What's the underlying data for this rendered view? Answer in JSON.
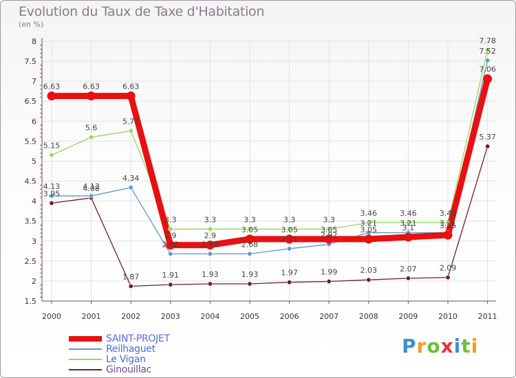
{
  "chart_data": {
    "type": "line",
    "title": "Evolution du Taux de Taxe d'Habitation",
    "subtitle": "(en %)",
    "x": [
      "2000",
      "2001",
      "2002",
      "2003",
      "2004",
      "2005",
      "2006",
      "2007",
      "2008",
      "2009",
      "2010",
      "2011"
    ],
    "ylim": [
      1.5,
      8
    ],
    "yticks": [
      "1.5",
      "2",
      "2.5",
      "3",
      "3.5",
      "4",
      "4.5",
      "5",
      "5.5",
      "6",
      "6.5",
      "7",
      "7.5",
      "8"
    ],
    "series": [
      {
        "name": "SAINT-PROJET",
        "color": "#e81010",
        "values": [
          6.63,
          6.63,
          6.63,
          2.9,
          2.9,
          3.05,
          3.05,
          3.05,
          3.05,
          3.1,
          3.15,
          7.06
        ],
        "labels": [
          "6.63",
          "6.63",
          "6.63",
          "2.9",
          "2.9",
          "3.05",
          "3.05",
          "3.05",
          "3.05",
          "3.1",
          "3.15",
          "7.06"
        ]
      },
      {
        "name": "Reilhaguet",
        "color": "#5b98cc",
        "values": [
          4.13,
          4.13,
          4.34,
          2.68,
          2.68,
          2.68,
          2.81,
          2.92,
          3.21,
          3.21,
          3.21,
          7.52
        ],
        "labels": [
          "4.13",
          "4.13",
          "4.34",
          "2.68",
          "2.68",
          "2.68",
          "2.81",
          "2.92",
          "3.21",
          "3.21",
          "3.21",
          "7.52"
        ]
      },
      {
        "name": "Le Vigan",
        "color": "#94d95a",
        "values": [
          5.15,
          5.6,
          5.76,
          3.3,
          3.3,
          3.3,
          3.3,
          3.3,
          3.46,
          3.46,
          3.46,
          7.78
        ],
        "labels": [
          "5.15",
          "5.6",
          "5.76",
          "3.3",
          "3.3",
          "3.3",
          "3.3",
          "3.3",
          "3.46",
          "3.46",
          "3.46",
          "7.78"
        ]
      },
      {
        "name": "Ginouillac",
        "color": "#6e1f26",
        "values": [
          3.95,
          4.08,
          1.87,
          1.91,
          1.93,
          1.93,
          1.97,
          1.99,
          2.03,
          2.07,
          2.09,
          5.37
        ],
        "labels": [
          "3.95",
          "4.08",
          "1.87",
          "1.91",
          "1.93",
          "1.93",
          "1.97",
          "1.99",
          "2.03",
          "2.07",
          "2.09",
          "5.37"
        ]
      }
    ]
  },
  "brand": {
    "parts": [
      "P",
      "r",
      "o",
      "x",
      "i",
      "t",
      "i"
    ]
  }
}
